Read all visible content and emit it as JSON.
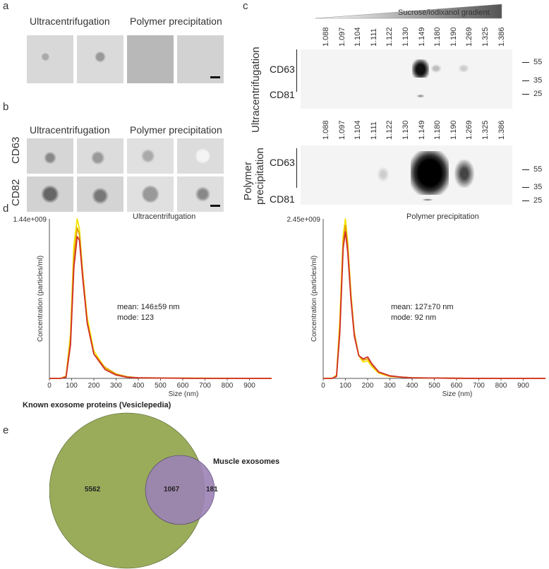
{
  "panels": {
    "a": "a",
    "b": "b",
    "c": "c",
    "d": "d",
    "e": "e"
  },
  "panel_a": {
    "col1": "Ultracentrifugation",
    "col2": "Polymer precipitation"
  },
  "panel_b": {
    "col1": "Ultracentrifugation",
    "col2": "Polymer precipitation",
    "row1": "CD63",
    "row2": "CD82"
  },
  "panel_c": {
    "gradient_label": "Sucrose/iodixanol gradient",
    "densities": [
      "1.088",
      "1.097",
      "1.104",
      "1.111",
      "1.122",
      "1.130",
      "1.149",
      "1.180",
      "1.190",
      "1.269",
      "1.325",
      "1.386"
    ],
    "blot1_title": "Ultracentrifugation",
    "blot2_title_line1": "Polymer",
    "blot2_title_line2": "precipitation",
    "band1": "CD63",
    "band2": "CD81",
    "mw": [
      "55",
      "35",
      "25"
    ]
  },
  "chart_data": [
    {
      "type": "line",
      "title": "Ultracentrifugation",
      "xlabel": "Size (nm)",
      "ylabel": "Concentration (particles/ml)",
      "ymax_label": "1.44e+009",
      "xlim": [
        0,
        1000
      ],
      "ylim": [
        0,
        1440000000.0
      ],
      "xticks": [
        "0",
        "100",
        "200",
        "300",
        "400",
        "500",
        "600",
        "700",
        "800",
        "900"
      ],
      "annotation": [
        "mean: 146±59 nm",
        "mode: 123"
      ],
      "series": [
        {
          "color": "#f5e400",
          "x": [
            0,
            50,
            75,
            95,
            110,
            125,
            135,
            150,
            170,
            200,
            250,
            300,
            350,
            400,
            500,
            600,
            700,
            800,
            900,
            1000
          ],
          "y": [
            0,
            0,
            20000000.0,
            400000000.0,
            1200000000.0,
            1440000000.0,
            1350000000.0,
            950000000.0,
            550000000.0,
            250000000.0,
            90000000.0,
            30000000.0,
            10000000.0,
            5000000.0,
            4000000.0,
            2000000.0,
            1000000.0,
            1000000.0,
            0,
            0
          ]
        },
        {
          "color": "#e4a000",
          "x": [
            0,
            50,
            75,
            95,
            110,
            125,
            135,
            150,
            170,
            200,
            250,
            300,
            350,
            400,
            500,
            600,
            700,
            800,
            900,
            1000
          ],
          "y": [
            0,
            0,
            20000000.0,
            350000000.0,
            1100000000.0,
            1360000000.0,
            1300000000.0,
            950000000.0,
            500000000.0,
            220000000.0,
            100000000.0,
            40000000.0,
            15000000.0,
            6000000.0,
            4000000.0,
            2000000.0,
            1000000.0,
            0,
            0,
            0
          ]
        },
        {
          "color": "#d0302a",
          "x": [
            0,
            50,
            75,
            95,
            110,
            125,
            135,
            150,
            170,
            200,
            250,
            300,
            350,
            400,
            500,
            600,
            700,
            800,
            900,
            1000
          ],
          "y": [
            0,
            0,
            10000000.0,
            300000000.0,
            1000000000.0,
            1280000000.0,
            1250000000.0,
            900000000.0,
            500000000.0,
            220000000.0,
            80000000.0,
            30000000.0,
            10000000.0,
            5000000.0,
            3000000.0,
            1000000.0,
            0,
            0,
            0,
            0
          ]
        }
      ]
    },
    {
      "type": "line",
      "title": "Polymer precipitation",
      "xlabel": "Size (nm)",
      "ylabel": "Concentration (particles/ml)",
      "ymax_label": "2.45e+009",
      "xlim": [
        0,
        1000
      ],
      "ylim": [
        0,
        2450000000.0
      ],
      "xticks": [
        "0",
        "100",
        "200",
        "300",
        "400",
        "500",
        "600",
        "700",
        "800",
        "900"
      ],
      "annotation": [
        "mean: 127±70 nm",
        "mode: 92 nm"
      ],
      "series": [
        {
          "color": "#f5e400",
          "x": [
            0,
            40,
            60,
            75,
            90,
            100,
            110,
            125,
            140,
            160,
            180,
            200,
            220,
            250,
            300,
            350,
            400,
            500,
            600,
            700,
            800,
            1000
          ],
          "y": [
            0,
            0,
            50000000.0,
            900000000.0,
            2200000000.0,
            2450000000.0,
            2100000000.0,
            1300000000.0,
            700000000.0,
            350000000.0,
            250000000.0,
            270000000.0,
            180000000.0,
            80000000.0,
            30000000.0,
            20000000.0,
            10000000.0,
            5000000.0,
            2000000.0,
            0,
            0,
            0
          ]
        },
        {
          "color": "#e4a000",
          "x": [
            0,
            40,
            60,
            75,
            90,
            100,
            110,
            125,
            140,
            160,
            180,
            200,
            220,
            250,
            300,
            350,
            400,
            500,
            600,
            700,
            800,
            1000
          ],
          "y": [
            0,
            0,
            40000000.0,
            800000000.0,
            2100000000.0,
            2350000000.0,
            2050000000.0,
            1250000000.0,
            700000000.0,
            350000000.0,
            280000000.0,
            300000000.0,
            200000000.0,
            90000000.0,
            30000000.0,
            20000000.0,
            10000000.0,
            5000000.0,
            2000000.0,
            0,
            0,
            0
          ]
        },
        {
          "color": "#d0302a",
          "x": [
            0,
            40,
            60,
            75,
            90,
            100,
            110,
            125,
            140,
            160,
            180,
            200,
            220,
            250,
            300,
            350,
            400,
            500,
            600,
            700,
            800,
            1000
          ],
          "y": [
            0,
            0,
            30000000.0,
            700000000.0,
            2000000000.0,
            2250000000.0,
            1950000000.0,
            1200000000.0,
            650000000.0,
            350000000.0,
            300000000.0,
            330000000.0,
            220000000.0,
            100000000.0,
            40000000.0,
            20000000.0,
            10000000.0,
            5000000.0,
            2000000.0,
            0,
            0,
            0
          ]
        }
      ]
    }
  ],
  "venn": {
    "title_left": "Known exosome proteins (Vesiclepedia)",
    "title_right": "Muscle exosomes",
    "left_only": "5562",
    "overlap": "1067",
    "right_only": "181",
    "left_color": "#9aac5a",
    "right_color": "#9b82b5"
  }
}
